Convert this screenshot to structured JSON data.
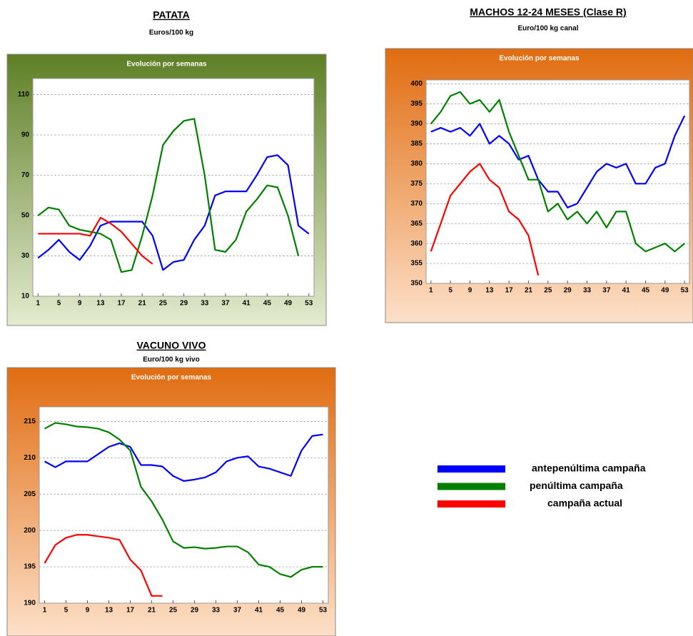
{
  "chart_data": [
    {
      "type": "line",
      "title": "PATATA",
      "subtitle": "Euros/100 kg",
      "panel_title": "Evolución por semanas",
      "x": [
        1,
        3,
        5,
        7,
        9,
        11,
        13,
        15,
        17,
        19,
        21,
        23,
        25,
        27,
        29,
        31,
        33,
        35,
        37,
        39,
        41,
        43,
        45,
        47,
        49,
        51,
        53
      ],
      "xlim": [
        0,
        54
      ],
      "xticks": [
        1,
        5,
        9,
        13,
        17,
        21,
        25,
        29,
        33,
        37,
        41,
        45,
        49,
        53
      ],
      "ylim": [
        10,
        118
      ],
      "yticks": [
        10,
        30,
        50,
        70,
        90,
        110
      ],
      "grid": true,
      "series": [
        {
          "color": "#0000ff",
          "values": [
            29,
            33,
            38,
            32,
            28,
            35,
            45,
            47,
            47,
            47,
            47,
            40,
            23,
            27,
            28,
            38,
            45,
            60,
            62,
            62,
            62,
            70,
            79,
            80,
            75,
            45,
            41
          ]
        },
        {
          "color": "#008000",
          "values": [
            50,
            54,
            53,
            45,
            43,
            42,
            41,
            38,
            22,
            23,
            40,
            60,
            85,
            92,
            97,
            98,
            70,
            33,
            32,
            38,
            52,
            58,
            65,
            64,
            50,
            30,
            null
          ]
        },
        {
          "color": "#ff0000",
          "values": [
            41,
            41,
            41,
            41,
            41,
            40,
            49,
            46,
            42,
            36,
            30,
            26,
            null,
            null,
            null,
            null,
            null,
            null,
            null,
            null,
            null,
            null,
            null,
            null,
            null,
            null,
            null
          ]
        }
      ]
    },
    {
      "type": "line",
      "title": "MACHOS 12-24 MESES (Clase R)",
      "subtitle": "Euro/100 kg canal",
      "panel_title": "Evolución por semanas",
      "x": [
        1,
        3,
        5,
        7,
        9,
        11,
        13,
        15,
        17,
        19,
        21,
        23,
        25,
        27,
        29,
        31,
        33,
        35,
        37,
        39,
        41,
        43,
        45,
        47,
        49,
        51,
        53
      ],
      "xlim": [
        0,
        54
      ],
      "xticks": [
        1,
        5,
        9,
        13,
        17,
        21,
        25,
        29,
        33,
        37,
        41,
        45,
        49,
        53
      ],
      "ylim": [
        350,
        401
      ],
      "yticks": [
        350,
        355,
        360,
        365,
        370,
        375,
        380,
        385,
        390,
        395,
        400
      ],
      "grid": true,
      "series": [
        {
          "color": "#0000ff",
          "values": [
            388,
            389,
            388,
            389,
            387,
            390,
            385,
            387,
            385,
            381,
            382,
            376,
            373,
            373,
            369,
            370,
            374,
            378,
            380,
            379,
            380,
            375,
            375,
            379,
            380,
            387,
            392
          ]
        },
        {
          "color": "#008000",
          "values": [
            390,
            393,
            397,
            398,
            395,
            396,
            393,
            396,
            388,
            382,
            376,
            376,
            368,
            370,
            366,
            368,
            365,
            368,
            364,
            368,
            368,
            360,
            358,
            359,
            360,
            358,
            360
          ]
        },
        {
          "color": "#ff0000",
          "values": [
            358,
            365,
            372,
            375,
            378,
            380,
            376,
            374,
            368,
            366,
            362,
            352,
            null,
            null,
            null,
            null,
            null,
            null,
            null,
            null,
            null,
            null,
            null,
            null,
            null,
            null,
            null
          ]
        }
      ]
    },
    {
      "type": "line",
      "title": "VACUNO VIVO",
      "subtitle": "Euro/100 kg vivo",
      "panel_title": "Evolución por semanas",
      "x": [
        1,
        3,
        5,
        7,
        9,
        11,
        13,
        15,
        17,
        19,
        21,
        23,
        25,
        27,
        29,
        31,
        33,
        35,
        37,
        39,
        41,
        43,
        45,
        47,
        49,
        51,
        53
      ],
      "xlim": [
        0,
        54
      ],
      "xticks": [
        1,
        5,
        9,
        13,
        17,
        21,
        25,
        29,
        33,
        37,
        41,
        45,
        49,
        53
      ],
      "ylim": [
        190,
        217
      ],
      "yticks": [
        190,
        195,
        200,
        205,
        210,
        215
      ],
      "grid": true,
      "series": [
        {
          "color": "#0000ff",
          "values": [
            209.5,
            208.7,
            209.5,
            209.5,
            209.5,
            210.5,
            211.5,
            212,
            211.5,
            209,
            209,
            208.8,
            207.5,
            206.8,
            207,
            207.3,
            208,
            209.5,
            210,
            210.2,
            208.8,
            208.5,
            208,
            207.5,
            211,
            213,
            213.2
          ]
        },
        {
          "color": "#008000",
          "values": [
            214,
            214.8,
            214.6,
            214.3,
            214.2,
            214,
            213.5,
            212.5,
            211,
            206,
            204,
            201.5,
            198.5,
            197.6,
            197.7,
            197.5,
            197.6,
            197.8,
            197.8,
            197,
            195.3,
            195,
            194,
            193.6,
            194.6,
            195,
            195
          ]
        },
        {
          "color": "#ff0000",
          "values": [
            195.5,
            198,
            199,
            199.4,
            199.4,
            199.2,
            199,
            198.7,
            196,
            194.5,
            191,
            191,
            null,
            null,
            null,
            null,
            null,
            null,
            null,
            null,
            null,
            null,
            null,
            null,
            null,
            null,
            null
          ]
        }
      ]
    }
  ],
  "legend": [
    {
      "name": "antepenúltima campaña",
      "color": "#0000ff"
    },
    {
      "name": "penúltima campaña",
      "color": "#008000"
    },
    {
      "name": "campaña actual",
      "color": "#ff0000"
    }
  ]
}
